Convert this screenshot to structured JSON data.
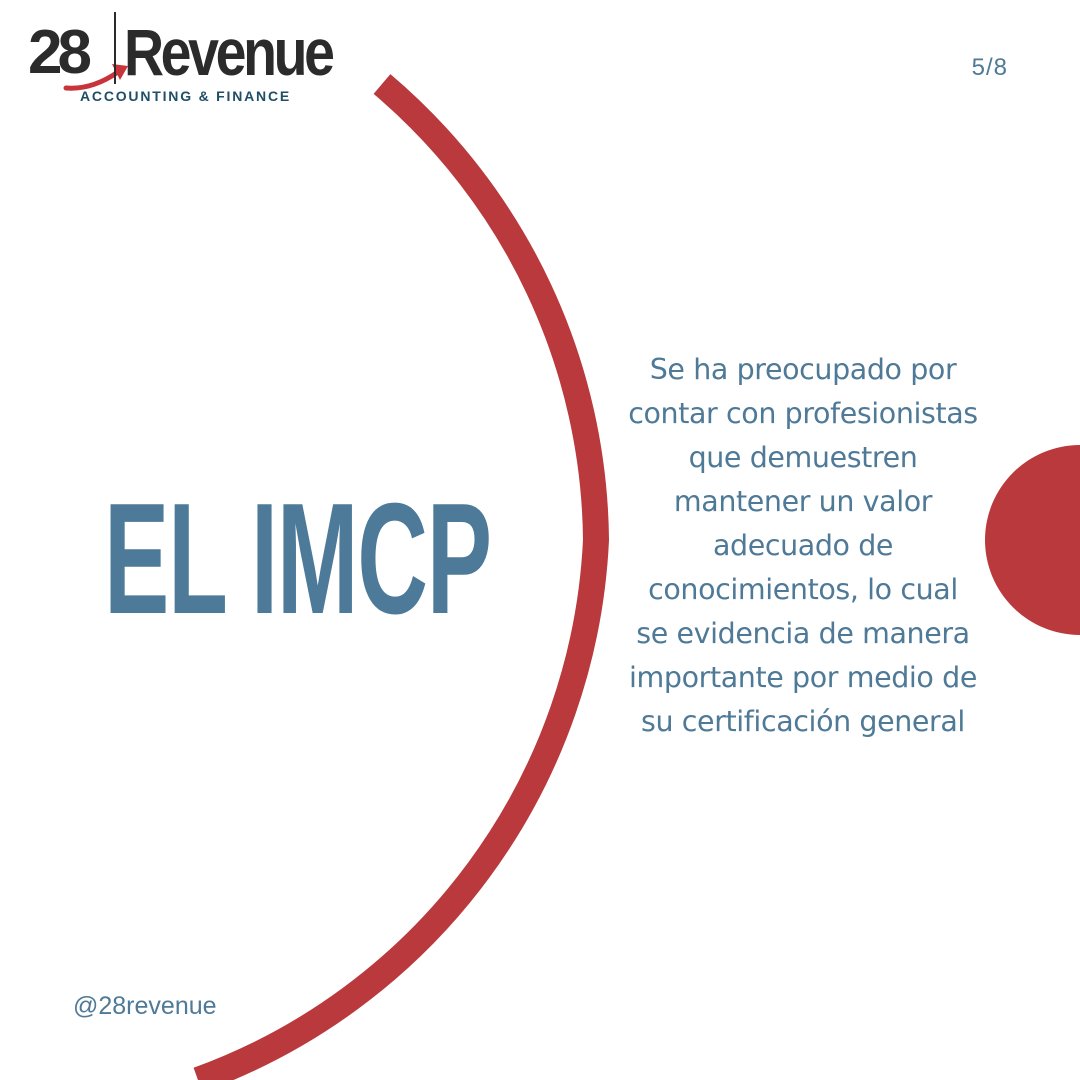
{
  "brand": {
    "logo_number": "28",
    "logo_word": "Revenue",
    "tagline": "ACCOUNTING & FINANCE"
  },
  "page_indicator": "5/8",
  "headline": "EL IMCP",
  "body_text": "Se ha preocupado por contar con profesionistas que demuestren mantener un valor adecuado de conocimientos, lo cual se evidencia de manera importante por medio de su certificación general",
  "social_handle": "@28revenue",
  "colors": {
    "accent_red": "#b9393c",
    "text_blue": "#4f7a97",
    "brand_dark": "#2b2b2b",
    "tagline_blue": "#1f4e66",
    "background": "#ffffff"
  }
}
